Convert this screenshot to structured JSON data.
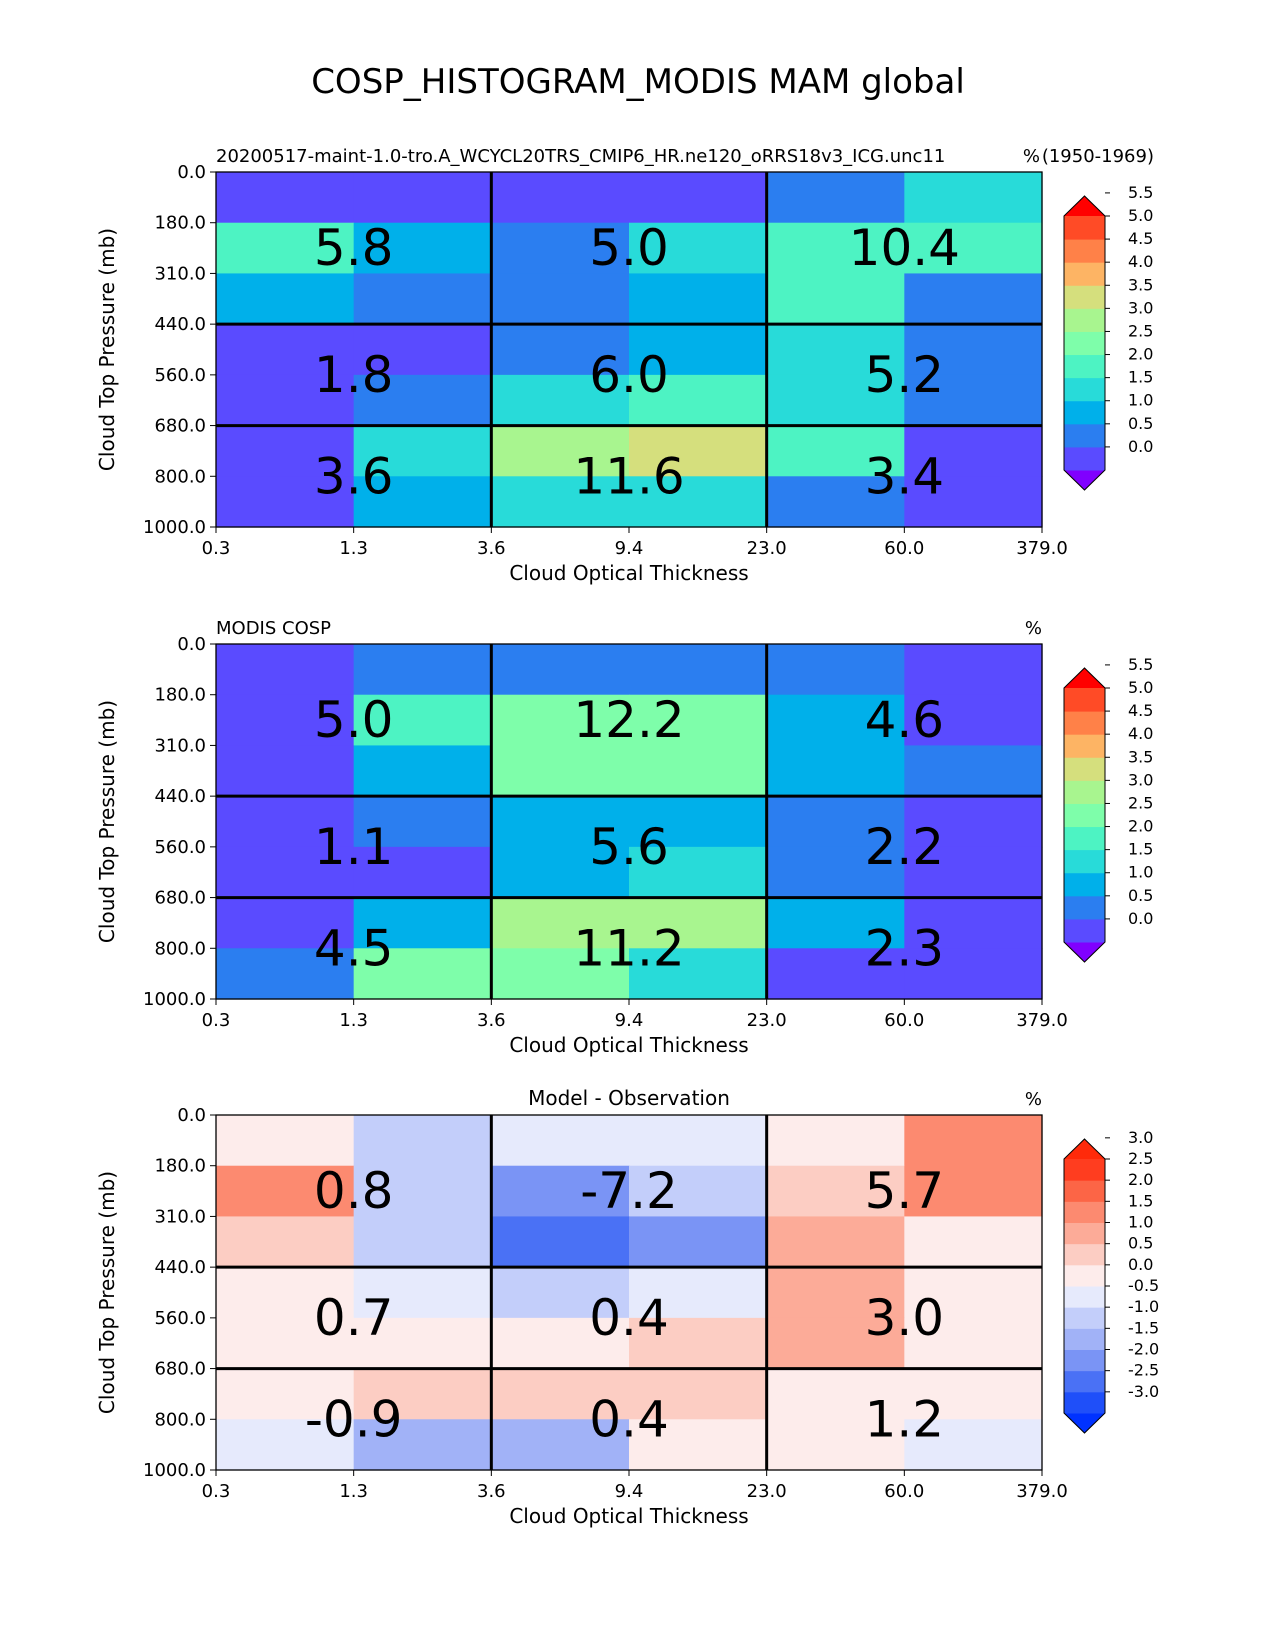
{
  "page_title": "COSP_HISTOGRAM_MODIS MAM global",
  "chart_data": [
    {
      "type": "heatmap",
      "title_left": "20200517-maint-1.0-tro.A_WCYCL20TRS_CMIP6_HR.ne120_oRRS18v3_ICG.unc11",
      "title_center": "",
      "title_right": "(1950-1969)",
      "units": "%",
      "xlabel": "Cloud Optical Thickness",
      "ylabel": "Cloud Top Pressure (mb)",
      "x_ticks": [
        "0.3",
        "1.3",
        "3.6",
        "9.4",
        "23.0",
        "60.0",
        "379.0"
      ],
      "y_ticks": [
        "0.0",
        "180.0",
        "310.0",
        "440.0",
        "560.0",
        "680.0",
        "800.0",
        "1000.0"
      ],
      "cells": [
        [
          0.3,
          0.4,
          0.3,
          0.3,
          0.8,
          1.7
        ],
        [
          2.2,
          1.4,
          0.8,
          1.7,
          2.2,
          2.2
        ],
        [
          1.4,
          0.8,
          0.8,
          1.4,
          2.2,
          0.8
        ],
        [
          0.3,
          0.3,
          0.8,
          1.4,
          1.7,
          0.8
        ],
        [
          0.3,
          0.8,
          1.7,
          2.2,
          1.7,
          0.8
        ],
        [
          0.3,
          1.7,
          3.2,
          3.8,
          2.2,
          0.3
        ],
        [
          0.3,
          1.4,
          1.7,
          1.7,
          0.8,
          0.3
        ]
      ],
      "block_labels": [
        [
          "5.8",
          "5.0",
          "10.4"
        ],
        [
          "1.8",
          "6.0",
          "5.2"
        ],
        [
          "3.6",
          "11.6",
          "3.4"
        ]
      ],
      "colorbar": {
        "ticks": [
          "0.0",
          "0.5",
          "1.0",
          "1.5",
          "2.0",
          "2.5",
          "3.0",
          "3.5",
          "4.0",
          "4.5",
          "5.0",
          "5.5"
        ],
        "colors": [
          "#8000ff",
          "#5a4bff",
          "#2b7ef0",
          "#00b0ea",
          "#28dbd9",
          "#4df3c3",
          "#7efeaa",
          "#a8f58f",
          "#d5df7d",
          "#fdb464",
          "#ff8148",
          "#ff4b26",
          "#ff0000"
        ]
      }
    },
    {
      "type": "heatmap",
      "title_left": "MODIS COSP",
      "title_center": "",
      "title_right": "",
      "units": "%",
      "xlabel": "Cloud Optical Thickness",
      "ylabel": "Cloud Top Pressure (mb)",
      "x_ticks": [
        "0.3",
        "1.3",
        "3.6",
        "9.4",
        "23.0",
        "60.0",
        "379.0"
      ],
      "y_ticks": [
        "0.0",
        "180.0",
        "310.0",
        "440.0",
        "560.0",
        "680.0",
        "800.0",
        "1000.0"
      ],
      "cells": [
        [
          0.3,
          0.8,
          0.8,
          0.8,
          0.8,
          0.3
        ],
        [
          0.3,
          2.2,
          2.8,
          2.8,
          1.4,
          0.3
        ],
        [
          0.3,
          1.4,
          2.8,
          2.8,
          1.4,
          0.8
        ],
        [
          0.3,
          0.8,
          1.4,
          1.4,
          0.8,
          0.3
        ],
        [
          0.3,
          0.3,
          1.4,
          1.7,
          0.8,
          0.3
        ],
        [
          0.3,
          1.4,
          3.2,
          3.2,
          1.4,
          0.3
        ],
        [
          0.8,
          2.8,
          2.8,
          1.7,
          0.3,
          0.3
        ]
      ],
      "block_labels": [
        [
          "5.0",
          "12.2",
          "4.6"
        ],
        [
          "1.1",
          "5.6",
          "2.2"
        ],
        [
          "4.5",
          "11.2",
          "2.3"
        ]
      ],
      "colorbar": {
        "ticks": [
          "0.0",
          "0.5",
          "1.0",
          "1.5",
          "2.0",
          "2.5",
          "3.0",
          "3.5",
          "4.0",
          "4.5",
          "5.0",
          "5.5"
        ],
        "colors": [
          "#8000ff",
          "#5a4bff",
          "#2b7ef0",
          "#00b0ea",
          "#28dbd9",
          "#4df3c3",
          "#7efeaa",
          "#a8f58f",
          "#d5df7d",
          "#fdb464",
          "#ff8148",
          "#ff4b26",
          "#ff0000"
        ]
      }
    },
    {
      "type": "heatmap",
      "title_left": "",
      "title_center": "Model - Observation",
      "title_right": "",
      "units": "%",
      "xlabel": "Cloud Optical Thickness",
      "ylabel": "Cloud Top Pressure (mb)",
      "x_ticks": [
        "0.3",
        "1.3",
        "3.6",
        "9.4",
        "23.0",
        "60.0",
        "379.0"
      ],
      "y_ticks": [
        "0.0",
        "180.0",
        "310.0",
        "440.0",
        "560.0",
        "680.0",
        "800.0",
        "1000.0"
      ],
      "cells": [
        [
          0.2,
          -0.7,
          -0.2,
          -0.2,
          0.2,
          1.7
        ],
        [
          1.7,
          -0.7,
          -1.7,
          -0.7,
          0.7,
          1.7
        ],
        [
          0.7,
          -0.7,
          -2.2,
          -1.7,
          1.2,
          0.2
        ],
        [
          0.2,
          -0.2,
          -0.7,
          -0.2,
          1.2,
          0.2
        ],
        [
          0.2,
          0.2,
          0.2,
          0.7,
          1.2,
          0.2
        ],
        [
          0.2,
          0.7,
          0.7,
          0.7,
          0.2,
          0.2
        ],
        [
          -0.2,
          -1.2,
          -1.2,
          0.2,
          0.2,
          -0.2
        ]
      ],
      "block_labels": [
        [
          "0.8",
          "-7.2",
          "5.7"
        ],
        [
          "0.7",
          "0.4",
          "3.0"
        ],
        [
          "-0.9",
          "0.4",
          "1.2"
        ]
      ],
      "colorbar": {
        "ticks": [
          "-3.0",
          "-2.5",
          "-2.0",
          "-1.5",
          "-1.0",
          "-0.5",
          "0.0",
          "0.5",
          "1.0",
          "1.5",
          "2.0",
          "2.5",
          "3.0"
        ],
        "colors": [
          "#0032ff",
          "#1f4ff9",
          "#4a71f5",
          "#7a94f5",
          "#a1b2f7",
          "#c3cefa",
          "#e6eafc",
          "#fdeceb",
          "#fccdc3",
          "#fcab98",
          "#fc8a70",
          "#fc6546",
          "#ff3d1f",
          "#ff2a0a"
        ]
      }
    }
  ]
}
